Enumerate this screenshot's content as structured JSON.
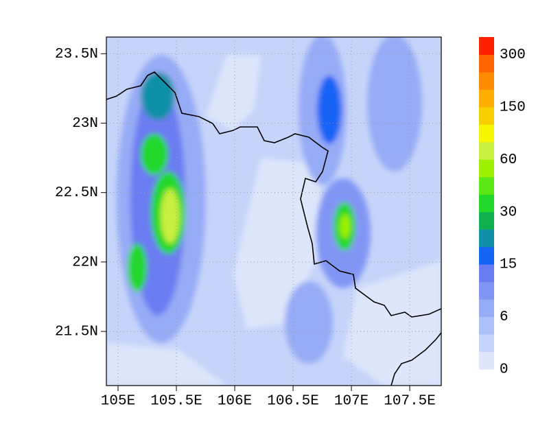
{
  "map": {
    "xlim": [
      104.9,
      107.77
    ],
    "ylim": [
      21.11,
      23.62
    ],
    "xticks": [
      {
        "value": 105,
        "label": "105E"
      },
      {
        "value": 105.5,
        "label": "105.5E"
      },
      {
        "value": 106,
        "label": "106E"
      },
      {
        "value": 106.5,
        "label": "106.5E"
      },
      {
        "value": 107,
        "label": "107E"
      },
      {
        "value": 107.5,
        "label": "107.5E"
      }
    ],
    "yticks": [
      {
        "value": 21.5,
        "label": "21.5N"
      },
      {
        "value": 22,
        "label": "22N"
      },
      {
        "value": 22.5,
        "label": "22.5N"
      },
      {
        "value": 23,
        "label": "23N"
      },
      {
        "value": 23.5,
        "label": "23.5N"
      }
    ],
    "grid": true,
    "colorbar": {
      "colors": [
        "#dde6fb",
        "#c6d4fa",
        "#adc0f8",
        "#97acf6",
        "#8196f4",
        "#6a7cf2",
        "#1564f5",
        "#1090a8",
        "#10b050",
        "#22d82a",
        "#5ce814",
        "#9cf000",
        "#c8f040",
        "#f6f600",
        "#f8d000",
        "#ffae00",
        "#ff8c00",
        "#ff6400",
        "#ff2000"
      ],
      "ticks": [
        0,
        6,
        15,
        30,
        60,
        150,
        300
      ]
    }
  }
}
